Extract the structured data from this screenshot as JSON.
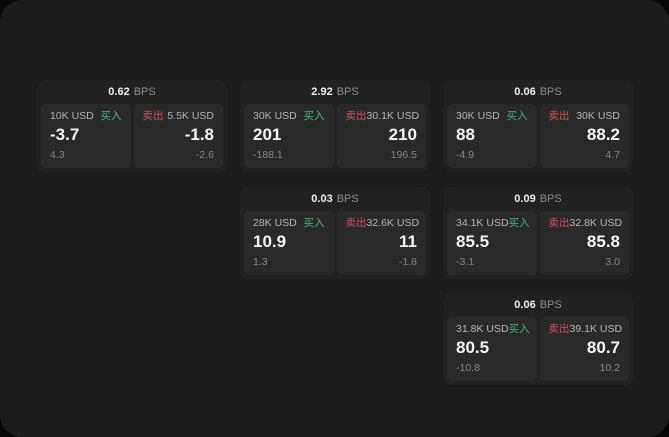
{
  "labels": {
    "bps_unit": "BPS",
    "buy": "买入",
    "sell": "卖出"
  },
  "colors": {
    "buy_green": "#3dba7c",
    "sell_red": "#d15060",
    "panel_bg": "#1c1c1c",
    "card_bg": "#212121",
    "cell_bg": "#292929"
  },
  "cards": [
    {
      "bps": "0.62",
      "buy": {
        "amount": "10K USD",
        "price": "-3.7",
        "delta": "4.3"
      },
      "sell": {
        "amount": "5.5K USD",
        "price": "-1.8",
        "delta": "-2.6"
      }
    },
    {
      "bps": "2.92",
      "buy": {
        "amount": "30K USD",
        "price": "201",
        "delta": "-188.1"
      },
      "sell": {
        "amount": "30.1K USD",
        "price": "210",
        "delta": "196.5"
      }
    },
    {
      "bps": "0.06",
      "buy": {
        "amount": "30K USD",
        "price": "88",
        "delta": "-4.9"
      },
      "sell": {
        "amount": "30K USD",
        "price": "88.2",
        "delta": "4.7"
      }
    },
    {
      "bps": "0.03",
      "buy": {
        "amount": "28K USD",
        "price": "10.9",
        "delta": "1.3"
      },
      "sell": {
        "amount": "32.6K USD",
        "price": "11",
        "delta": "-1.8"
      }
    },
    {
      "bps": "0.09",
      "buy": {
        "amount": "34.1K USD",
        "price": "85.5",
        "delta": "-3.1"
      },
      "sell": {
        "amount": "32.8K USD",
        "price": "85.8",
        "delta": "3.0"
      }
    },
    {
      "bps": "0.06",
      "buy": {
        "amount": "31.8K USD",
        "price": "80.5",
        "delta": "-10.8"
      },
      "sell": {
        "amount": "39.1K USD",
        "price": "80.7",
        "delta": "10.2"
      }
    }
  ]
}
